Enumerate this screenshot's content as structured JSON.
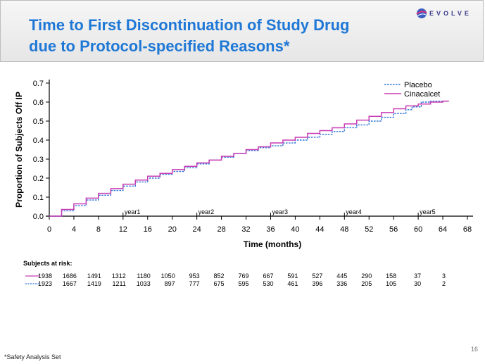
{
  "slide": {
    "title_line1": "Time to First Discontinuation of Study Drug",
    "title_line2": "due to Protocol-specified Reasons*",
    "logo_text": "EVOLVE",
    "footnote": "*Safety Analysis Set",
    "page_number": "16"
  },
  "chart_data": {
    "type": "line",
    "title": "",
    "xlabel": "Time (months)",
    "ylabel": "Proportion  of Subjects Off IP",
    "xlim": [
      0,
      68
    ],
    "ylim": [
      0,
      0.7
    ],
    "x_ticks": [
      0,
      4,
      8,
      12,
      16,
      20,
      24,
      28,
      32,
      36,
      40,
      44,
      48,
      52,
      56,
      60,
      64,
      68
    ],
    "y_ticks": [
      "0.0",
      "0.1",
      "0.2",
      "0.3",
      "0.4",
      "0.5",
      "0.6",
      "0.7"
    ],
    "year_markers": [
      {
        "label": "year1",
        "x": 12
      },
      {
        "label": "year2",
        "x": 24
      },
      {
        "label": "year3",
        "x": 36
      },
      {
        "label": "year4",
        "x": 48
      },
      {
        "label": "year5",
        "x": 60
      }
    ],
    "legend_position": "top-right",
    "series": [
      {
        "name": "Placebo",
        "color": "#2e75d8",
        "dash": "dotted",
        "x": [
          0,
          2,
          4,
          6,
          8,
          10,
          12,
          14,
          16,
          18,
          20,
          22,
          24,
          26,
          28,
          30,
          32,
          34,
          36,
          38,
          40,
          42,
          44,
          46,
          48,
          50,
          52,
          54,
          56,
          58,
          59,
          60,
          60.5,
          62,
          64,
          65
        ],
        "y": [
          0.0,
          0.028,
          0.055,
          0.085,
          0.11,
          0.135,
          0.158,
          0.18,
          0.2,
          0.22,
          0.235,
          0.255,
          0.275,
          0.295,
          0.31,
          0.33,
          0.345,
          0.36,
          0.37,
          0.385,
          0.4,
          0.415,
          0.43,
          0.445,
          0.465,
          0.48,
          0.5,
          0.52,
          0.54,
          0.56,
          0.575,
          0.575,
          0.6,
          0.605,
          0.605,
          0.605
        ]
      },
      {
        "name": "Cinacalcet",
        "color": "#c83cb4",
        "dash": "solid",
        "x": [
          0,
          2,
          4,
          6,
          8,
          10,
          12,
          14,
          16,
          18,
          20,
          22,
          24,
          26,
          28,
          30,
          32,
          34,
          36,
          38,
          40,
          42,
          44,
          46,
          48,
          50,
          52,
          54,
          56,
          58,
          60,
          62,
          64,
          65
        ],
        "y": [
          0.0,
          0.035,
          0.065,
          0.095,
          0.12,
          0.145,
          0.168,
          0.19,
          0.21,
          0.225,
          0.245,
          0.262,
          0.28,
          0.295,
          0.315,
          0.33,
          0.35,
          0.365,
          0.385,
          0.4,
          0.415,
          0.435,
          0.45,
          0.465,
          0.485,
          0.505,
          0.525,
          0.545,
          0.565,
          0.58,
          0.59,
          0.6,
          0.605,
          0.605
        ]
      }
    ],
    "risk_table": {
      "label": "Subjects at risk:",
      "rows": [
        {
          "name": "Cinacalcet",
          "values": [
            "1938",
            "1686",
            "1491",
            "1312",
            "1180",
            "1050",
            "953",
            "852",
            "769",
            "667",
            "591",
            "527",
            "445",
            "290",
            "158",
            "37",
            "3"
          ]
        },
        {
          "name": "Placebo",
          "values": [
            "1923",
            "1667",
            "1419",
            "1211",
            "1033",
            "897",
            "777",
            "675",
            "595",
            "530",
            "461",
            "396",
            "336",
            "205",
            "105",
            "30",
            "2"
          ]
        }
      ]
    }
  }
}
